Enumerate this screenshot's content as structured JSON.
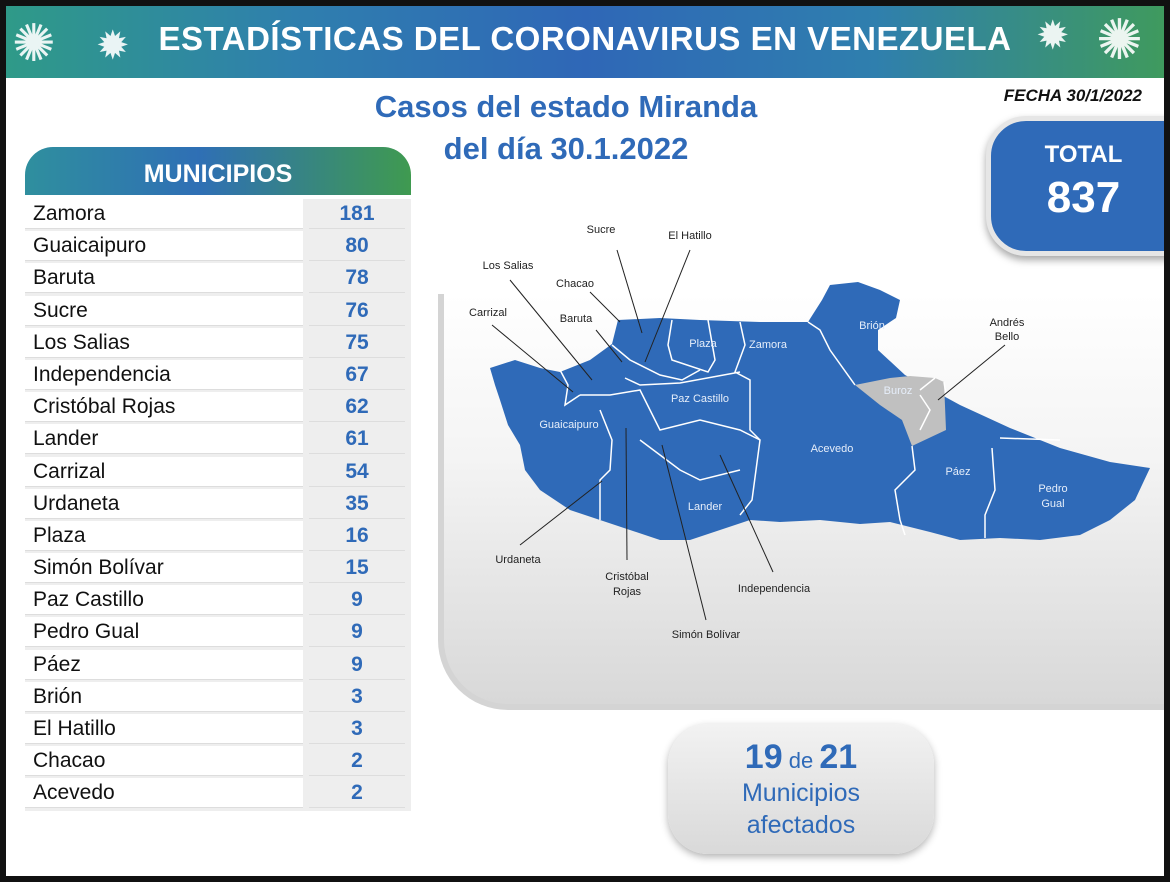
{
  "header": {
    "title": "ESTADÍSTICAS DEL CORONAVIRUS EN VENEZUELA",
    "icon": "virus-icon"
  },
  "subtitle": {
    "line1": "Casos del estado Miranda",
    "line2": "del día 30.1.2022"
  },
  "fecha": "FECHA 30/1/2022",
  "total": {
    "label": "TOTAL",
    "value": "837"
  },
  "municipios": {
    "header": "MUNICIPIOS",
    "rows": [
      {
        "name": "Zamora",
        "value": "181"
      },
      {
        "name": "Guaicaipuro",
        "value": "80"
      },
      {
        "name": "Baruta",
        "value": "78"
      },
      {
        "name": "Sucre",
        "value": "76"
      },
      {
        "name": "Los Salias",
        "value": "75"
      },
      {
        "name": "Independencia",
        "value": "67"
      },
      {
        "name": "Cristóbal Rojas",
        "value": "62"
      },
      {
        "name": "Lander",
        "value": "61"
      },
      {
        "name": "Carrizal",
        "value": "54"
      },
      {
        "name": "Urdaneta",
        "value": "35"
      },
      {
        "name": "Plaza",
        "value": "16"
      },
      {
        "name": "Simón Bolívar",
        "value": "15"
      },
      {
        "name": "Paz Castillo",
        "value": "9"
      },
      {
        "name": "Pedro Gual",
        "value": "9"
      },
      {
        "name": "Páez",
        "value": "9"
      },
      {
        "name": "Brión",
        "value": "3"
      },
      {
        "name": "El Hatillo",
        "value": "3"
      },
      {
        "name": "Chacao",
        "value": "2"
      },
      {
        "name": "Acevedo",
        "value": "2"
      }
    ]
  },
  "map": {
    "affected_color": "#2f6ab8",
    "unaffected_color": "#c0c0c0",
    "labels": {
      "sucre": "Sucre",
      "el_hatillo": "El Hatillo",
      "los_salias": "Los Salias",
      "chacao": "Chacao",
      "carrizal": "Carrizal",
      "baruta": "Baruta",
      "plaza": "Plaza",
      "zamora": "Zamora",
      "brion": "Brión",
      "andres_bello_1": "Andrés",
      "andres_bello_2": "Bello",
      "buroz": "Buroz",
      "paz_castillo": "Paz Castillo",
      "guaicaipuro": "Guaicaipuro",
      "acevedo": "Acevedo",
      "paez": "Páez",
      "pedro_gual_1": "Pedro",
      "pedro_gual_2": "Gual",
      "lander": "Lander",
      "urdaneta": "Urdaneta",
      "cristobal_rojas_1": "Cristóbal",
      "cristobal_rojas_2": "Rojas",
      "independencia": "Independencia",
      "simon_bolivar": "Simón Bolívar"
    }
  },
  "affected": {
    "count": "19",
    "de": "de",
    "total": "21",
    "line1": "Municipios",
    "line2": "afectados"
  }
}
